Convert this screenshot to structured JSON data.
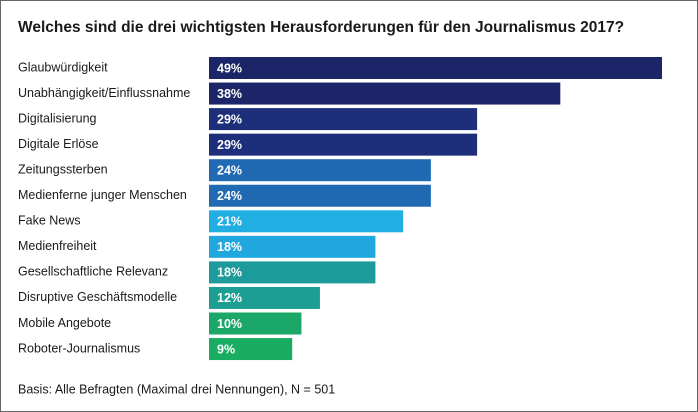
{
  "chart_data": {
    "type": "bar",
    "orientation": "horizontal",
    "title": "Welches sind die drei wichtigsten Herausforderungen für den Journalismus 2017?",
    "categories": [
      "Glaubwürdigkeit",
      "Unabhängigkeit/Einflussnahme",
      "Digitalisierung",
      "Digitale Erlöse",
      "Zeitungssterben",
      "Medienferne junger Menschen",
      "Fake News",
      "Medienfreiheit",
      "Gesellschaftliche Relevanz",
      "Disruptive Geschäftsmodelle",
      "Mobile Angebote",
      "Roboter-Journalismus"
    ],
    "values": [
      49,
      38,
      29,
      29,
      24,
      24,
      21,
      18,
      18,
      12,
      10,
      9
    ],
    "value_labels": [
      "49%",
      "38%",
      "29%",
      "29%",
      "24%",
      "24%",
      "21%",
      "18%",
      "18%",
      "12%",
      "10%",
      "9%"
    ],
    "colors": [
      "#1c2567",
      "#1c2567",
      "#1d2f7a",
      "#1d2f7a",
      "#1f6ab3",
      "#1f6ab3",
      "#20aee3",
      "#20a8de",
      "#1d9b9a",
      "#1c9f92",
      "#1aa767",
      "#19ad62"
    ],
    "note": "Basis: Alle Befragten (Maximal drei Nennungen), N = 501"
  }
}
